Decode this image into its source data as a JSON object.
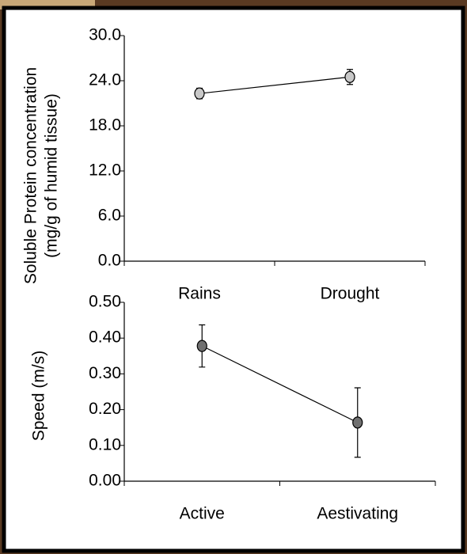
{
  "chart_data": [
    {
      "type": "line",
      "ylabel": [
        "Soluble Protein concentration",
        "(mg/g of humid tissue)"
      ],
      "categories": [
        "Rains",
        "Drought"
      ],
      "series": [
        {
          "color": "#c8c8c8",
          "values": [
            22.3,
            24.5
          ],
          "errors": [
            0.7,
            1.0
          ]
        }
      ],
      "ylim": [
        0,
        30
      ],
      "yticks": [
        {
          "value": 0,
          "label": "0.0"
        },
        {
          "value": 6,
          "label": "6.0"
        },
        {
          "value": 12,
          "label": "12.0"
        },
        {
          "value": 18,
          "label": "18.0"
        },
        {
          "value": 24,
          "label": "24.0"
        },
        {
          "value": 30,
          "label": "30.0"
        }
      ]
    },
    {
      "type": "line",
      "ylabel": [
        "Speed (m/s)"
      ],
      "categories": [
        "Active",
        "Aestivating"
      ],
      "series": [
        {
          "color": "#707070",
          "values": [
            0.378,
            0.164
          ],
          "errors": [
            0.059,
            0.097
          ]
        }
      ],
      "ylim": [
        0,
        0.5
      ],
      "yticks": [
        {
          "value": 0,
          "label": "0.00"
        },
        {
          "value": 0.1,
          "label": "0.10"
        },
        {
          "value": 0.2,
          "label": "0.20"
        },
        {
          "value": 0.3,
          "label": "0.30"
        },
        {
          "value": 0.4,
          "label": "0.40"
        },
        {
          "value": 0.5,
          "label": "0.50"
        }
      ]
    }
  ]
}
